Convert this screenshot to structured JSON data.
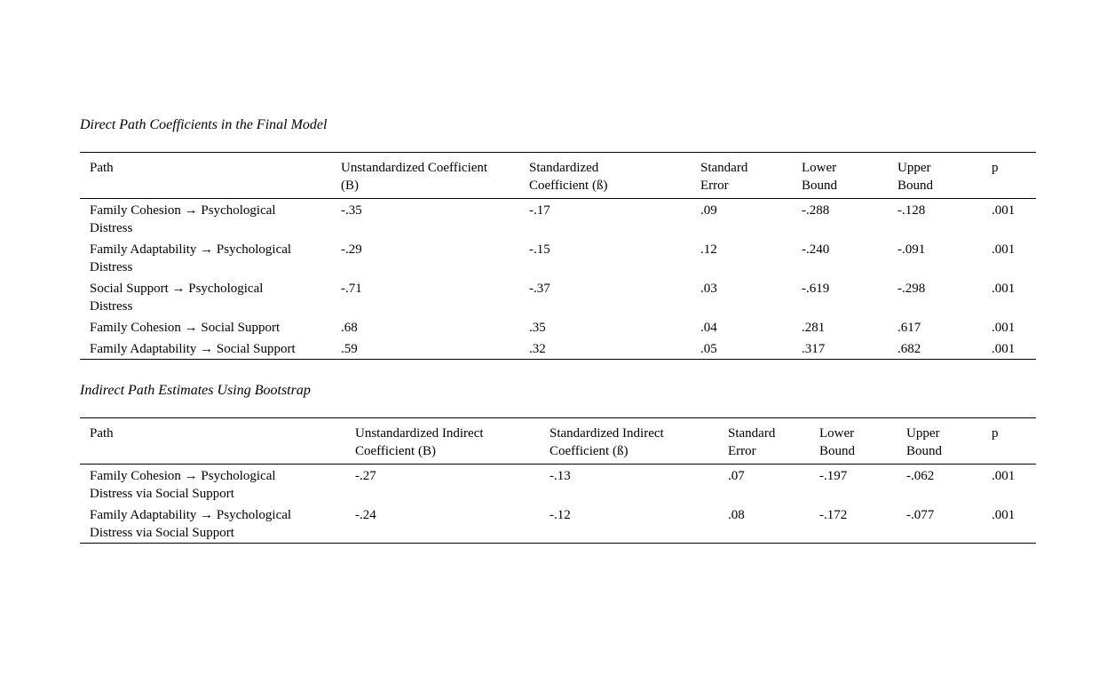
{
  "page": {
    "background_color": "#ffffff",
    "text_color": "#000000"
  },
  "tables": [
    {
      "title": "Direct Path Coefficients in the Final Model",
      "columns": [
        "Path",
        "Unstandardized Coefficient\n(B)",
        "Standardized\nCoefficient (ß)",
        "Standard\nError",
        "Lower\nBound",
        "Upper\nBound",
        "p"
      ],
      "rows": [
        [
          "Family Cohesion → Psychological\nDistress",
          "-.35",
          "-.17",
          ".09",
          "-.288",
          "-.128",
          ".001"
        ],
        [
          "Family Adaptability → Psychological\nDistress",
          "-.29",
          "-.15",
          ".12",
          "-.240",
          "-.091",
          ".001"
        ],
        [
          "Social Support → Psychological\nDistress",
          "-.71",
          "-.37",
          ".03",
          "-.619",
          "-.298",
          ".001"
        ],
        [
          "Family Cohesion → Social Support",
          ".68",
          ".35",
          ".04",
          ".281",
          ".617",
          ".001"
        ],
        [
          "Family Adaptability → Social Support",
          ".59",
          ".32",
          ".05",
          ".317",
          ".682",
          ".001"
        ]
      ]
    },
    {
      "title": "Indirect Path Estimates Using Bootstrap",
      "columns": [
        "Path",
        "Unstandardized Indirect\nCoefficient (B)",
        "Standardized Indirect\nCoefficient (ß)",
        "Standard\nError",
        "Lower\nBound",
        "Upper\nBound",
        "p"
      ],
      "rows": [
        [
          "Family Cohesion → Psychological\nDistress via Social Support",
          "-.27",
          "-.13",
          ".07",
          "-.197",
          "-.062",
          ".001"
        ],
        [
          "Family Adaptability → Psychological\nDistress via Social Support",
          "-.24",
          "-.12",
          ".08",
          "-.172",
          "-.077",
          ".001"
        ]
      ]
    }
  ]
}
